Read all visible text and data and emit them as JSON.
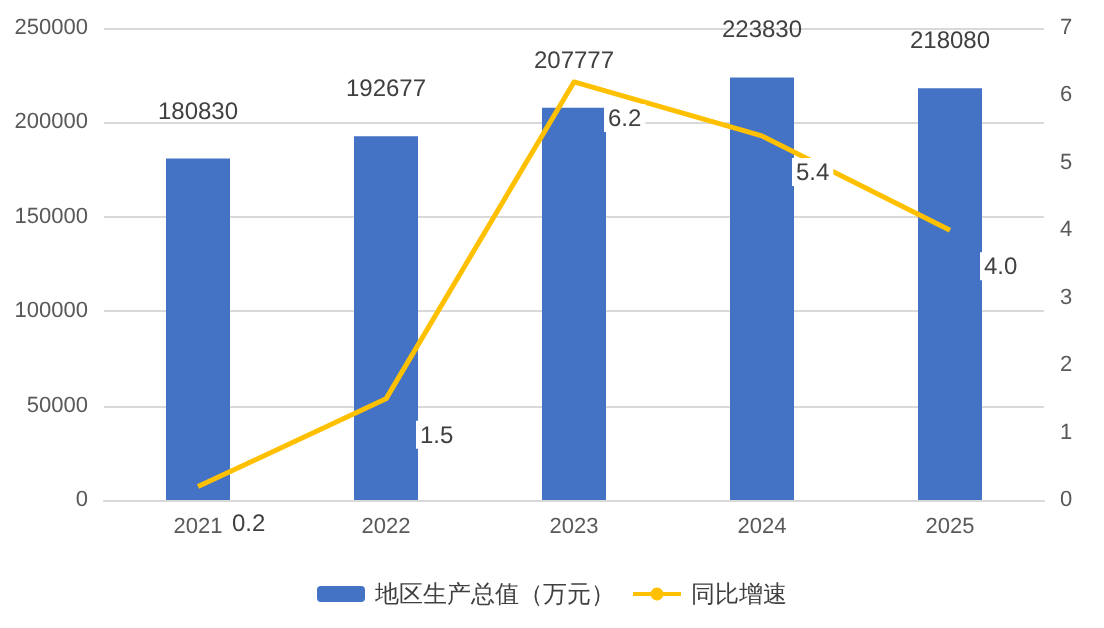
{
  "chart_data": {
    "type": "bar",
    "categories": [
      "2021",
      "2022",
      "2023",
      "2024",
      "2025"
    ],
    "series": [
      {
        "name": "地区生产总值（万元）",
        "color": "#4472c4",
        "values": [
          180830,
          192677,
          207777,
          223830,
          218080
        ]
      },
      {
        "name": "同比增速",
        "type": "line",
        "axis": "y2",
        "color": "#ffc000",
        "values": [
          0.2,
          1.5,
          6.2,
          5.4,
          4.0
        ],
        "value_labels": [
          "0.2",
          "1.5",
          "6.2",
          "5.4",
          "4.0"
        ]
      }
    ],
    "ylim": [
      0,
      250000
    ],
    "yticks": [
      0,
      50000,
      100000,
      150000,
      200000,
      250000
    ],
    "y2lim": [
      0,
      7
    ],
    "y2ticks": [
      0,
      1,
      2,
      3,
      4,
      5,
      6,
      7
    ],
    "grid": "y",
    "legend": "bottom",
    "marker": "none",
    "line_style": "solid",
    "data_labels": true
  }
}
